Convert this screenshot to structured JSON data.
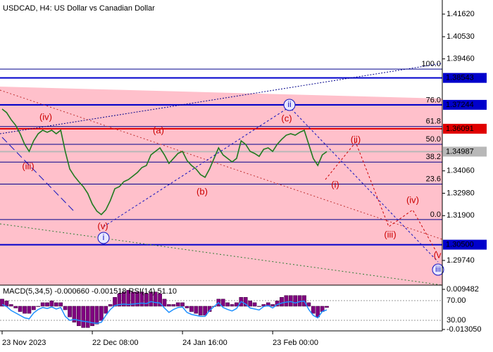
{
  "chart_data": [
    {
      "type": "line",
      "title": "USDCAD, H4:  US Dollar vs Canadian Dollar",
      "categories": [
        "23 Nov 2023",
        null,
        null,
        null,
        null,
        null,
        null,
        null,
        null,
        null,
        null,
        null,
        null,
        null,
        null,
        null,
        null,
        null,
        null,
        null,
        "22 Dec 08:00",
        null,
        null,
        null,
        null,
        null,
        null,
        null,
        null,
        null,
        null,
        null,
        null,
        null,
        null,
        null,
        null,
        null,
        null,
        null,
        "24 Jan 16:00",
        null,
        null,
        null,
        null,
        null,
        null,
        null,
        null,
        null,
        null,
        null,
        null,
        null,
        null,
        null,
        null,
        null,
        null,
        null,
        "23 Feb 00:00",
        null,
        null,
        null,
        null,
        null,
        null,
        null,
        null,
        null,
        null,
        null,
        null
      ],
      "values": [
        1.3704,
        1.3687,
        1.3653,
        1.3626,
        1.3585,
        1.3534,
        1.35,
        1.3551,
        1.3585,
        1.3602,
        1.3592,
        1.3602,
        1.3585,
        1.3602,
        1.35,
        1.3415,
        1.3381,
        1.3354,
        1.333,
        1.3297,
        1.3246,
        1.3212,
        1.3195,
        1.3218,
        1.3263,
        1.332,
        1.333,
        1.3354,
        1.3364,
        1.3381,
        1.3398,
        1.3422,
        1.3432,
        1.3483,
        1.35,
        1.3517,
        1.3483,
        1.3442,
        1.3466,
        1.349,
        1.35,
        1.3456,
        1.3432,
        1.3415,
        1.3388,
        1.3375,
        1.3415,
        1.3466,
        1.3517,
        1.3483,
        1.3466,
        1.3449,
        1.3466,
        1.3551,
        1.3534,
        1.35,
        1.349,
        1.3476,
        1.351,
        1.3517,
        1.35,
        1.3534,
        1.3558,
        1.3578,
        1.3585,
        1.3578,
        1.3592,
        1.3602,
        1.3534,
        1.3466,
        1.3432,
        1.3483,
        1.34987
      ],
      "color": "#1f7a1f",
      "ylim": [
        1.2855,
        1.423
      ],
      "yticks": [
        {
          "value": 1.4162,
          "label": "1.41620"
        },
        {
          "value": 1.4053,
          "label": "1.40530"
        },
        {
          "value": 1.3946,
          "label": "1.39460"
        },
        {
          "value": 1.3406,
          "label": "1.34060"
        },
        {
          "value": 1.3298,
          "label": "1.32980"
        },
        {
          "value": 1.319,
          "label": "1.31900"
        },
        {
          "value": 1.2974,
          "label": "1.29740"
        }
      ],
      "price_levels": [
        {
          "value": 1.38543,
          "label": "1.38543",
          "color": "#0000cc"
        },
        {
          "value": 1.37244,
          "label": "1.37244",
          "color": "#0000cc"
        },
        {
          "value": 1.36091,
          "label": "1.36091",
          "color": "#e00000"
        },
        {
          "value": 1.34987,
          "label": "1.34987",
          "color": "#b8b8b8"
        },
        {
          "value": 1.305,
          "label": "1.30500",
          "color": "#0000cc"
        }
      ],
      "fibonacci": {
        "range": [
          1.3171,
          1.3897
        ],
        "color": "#00008b",
        "levels": [
          {
            "value": 100,
            "label": "100.0"
          },
          {
            "value": 76,
            "label": "76.0"
          },
          61.8,
          {
            "value": 50,
            "label": "50.0"
          },
          38.2,
          23.6,
          {
            "value": 0,
            "label": "0.0"
          }
        ]
      },
      "annotations": [
        "(iv)",
        "(iii)",
        "(v)",
        "(a)",
        "(b)",
        "(c)",
        "(ii)",
        "(i)",
        "(iii)",
        "(iv)",
        "(v",
        "i",
        "ii",
        "iii"
      ]
    },
    {
      "type": "indicator",
      "title": "MACD(5,34,5) -0.000660 -0.001518 RSI(14) 51.10",
      "histogram": {
        "color": "#800080",
        "values": [
          0.004,
          0.003,
          0.001,
          -0.001,
          -0.003,
          -0.004,
          -0.004,
          -0.002,
          0,
          0.002,
          0.002,
          0.003,
          0.002,
          0.002,
          -0.002,
          -0.006,
          -0.009,
          -0.011,
          -0.012,
          -0.012,
          -0.011,
          -0.01,
          -0.008,
          -0.004,
          0.001,
          0.005,
          0.007,
          0.008,
          0.009,
          0.008,
          0.008,
          0.008,
          0.007,
          0.008,
          0.008,
          0.007,
          0.004,
          0.001,
          0.001,
          0.002,
          0.002,
          -0.001,
          -0.003,
          -0.004,
          -0.005,
          -0.005,
          -0.003,
          0,
          0.004,
          0.004,
          0.002,
          0.001,
          0.002,
          0.005,
          0.005,
          0.003,
          0.002,
          0,
          0.001,
          0.002,
          0.001,
          0.003,
          0.005,
          0.006,
          0.006,
          0.006,
          0.006,
          0.006,
          0.002,
          -0.004,
          -0.006,
          -0.003,
          -0.00066
        ]
      },
      "ylim": [
        -0.01384,
        0.01185
      ],
      "yticks": [
        {
          "value": 0.009482,
          "label": "0.009482"
        },
        {
          "value": -0.01305,
          "label": "-0.013050"
        }
      ],
      "rsi": {
        "color": "#1e90ff",
        "values": [
          62,
          58,
          50,
          45,
          40,
          35,
          33,
          45,
          52,
          56,
          54,
          57,
          53,
          56,
          38,
          30,
          32,
          30,
          28,
          27,
          25,
          24,
          26,
          40,
          52,
          60,
          62,
          63,
          62,
          63,
          64,
          65,
          64,
          68,
          66,
          65,
          55,
          46,
          52,
          56,
          57,
          46,
          42,
          40,
          38,
          38,
          50,
          58,
          66,
          56,
          52,
          49,
          54,
          68,
          63,
          55,
          53,
          51,
          58,
          60,
          55,
          62,
          65,
          67,
          68,
          65,
          68,
          69,
          52,
          40,
          35,
          48,
          51.1
        ],
        "ylim": [
          8.6,
          101.4
        ],
        "yticks": [
          {
            "value": 70,
            "label": "70.00"
          },
          {
            "value": 30,
            "label": "30.00"
          }
        ]
      }
    }
  ]
}
